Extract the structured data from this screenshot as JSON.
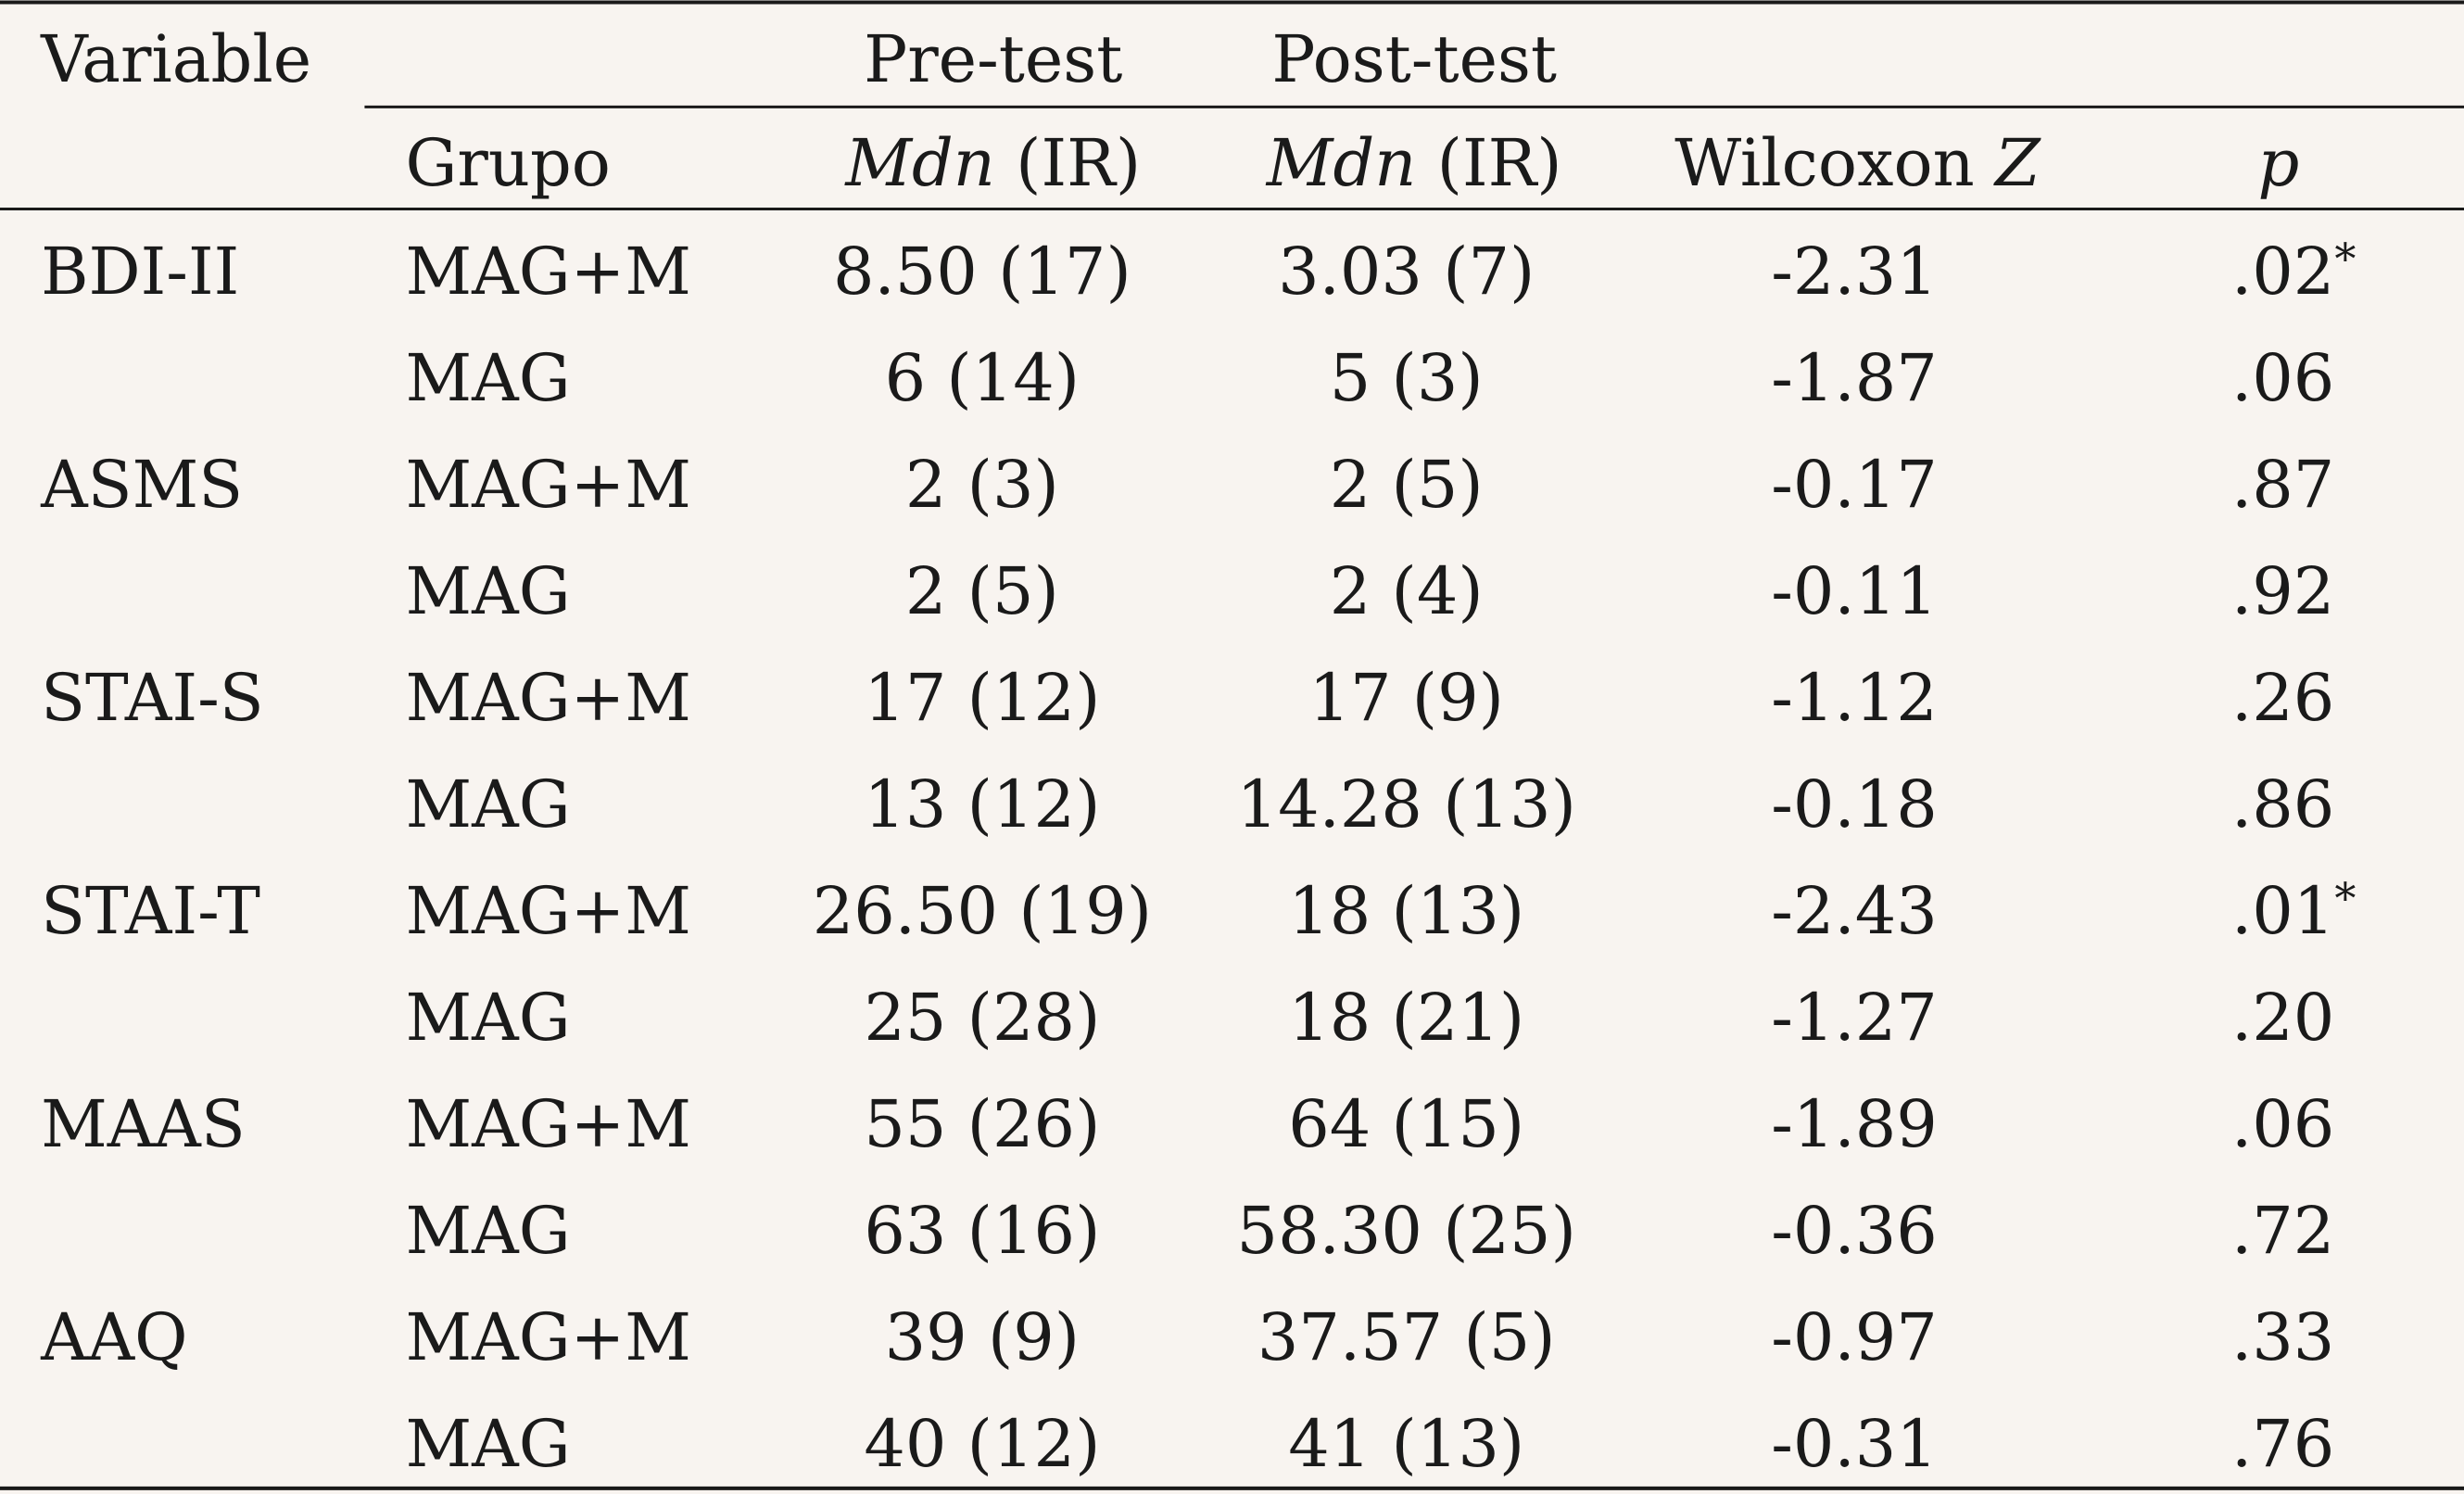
{
  "header": {
    "variable": "Variable",
    "pre_test": "Pre-test",
    "post_test": "Post-test",
    "grupo": "Grupo",
    "stat_symbol": "Mdn",
    "stat_rest": "(IR)",
    "wilcoxon": "Wilcoxon",
    "wilcoxon_symbol": "Z",
    "p": "p"
  },
  "table": {
    "groups": [
      {
        "variable": "BDI-II",
        "rows": [
          {
            "grupo": "MAG+M",
            "pre": "8.50 (17)",
            "post": "3.03 (7)",
            "z": "-2.31",
            "p": ".02",
            "mark": "*"
          },
          {
            "grupo": "MAG",
            "pre": "6 (14)",
            "post": "5 (3)",
            "z": "-1.87",
            "p": ".06"
          }
        ]
      },
      {
        "variable": "ASMS",
        "rows": [
          {
            "grupo": "MAG+M",
            "pre": "2 (3)",
            "post": "2 (5)",
            "z": "-0.17",
            "p": ".87"
          },
          {
            "grupo": "MAG",
            "pre": "2 (5)",
            "post": "2 (4)",
            "z": "-0.11",
            "p": ".92"
          }
        ]
      },
      {
        "variable": "STAI-S",
        "rows": [
          {
            "grupo": "MAG+M",
            "pre": "17 (12)",
            "post": "17 (9)",
            "z": "-1.12",
            "p": ".26"
          },
          {
            "grupo": "MAG",
            "pre": "13 (12)",
            "post": "14.28 (13)",
            "z": "-0.18",
            "p": ".86"
          }
        ]
      },
      {
        "variable": "STAI-T",
        "rows": [
          {
            "grupo": "MAG+M",
            "pre": "26.50 (19)",
            "post": "18 (13)",
            "z": "-2.43",
            "p": ".01",
            "mark": "*"
          },
          {
            "grupo": "MAG",
            "pre": "25 (28)",
            "post": "18 (21)",
            "z": "-1.27",
            "p": ".20"
          }
        ]
      },
      {
        "variable": "MAAS",
        "rows": [
          {
            "grupo": "MAG+M",
            "pre": "55 (26)",
            "post": "64 (15)",
            "z": "-1.89",
            "p": ".06"
          },
          {
            "grupo": "MAG",
            "pre": "63 (16)",
            "post": "58.30 (25)",
            "z": "-0.36",
            "p": ".72"
          }
        ]
      },
      {
        "variable": "AAQ",
        "rows": [
          {
            "grupo": "MAG+M",
            "pre": "39 (9)",
            "post": "37.57 (5)",
            "z": "-0.97",
            "p": ".33"
          },
          {
            "grupo": "MAG",
            "pre": "40 (12)",
            "post": "41 (13)",
            "z": "-0.31",
            "p": ".76"
          }
        ]
      }
    ]
  }
}
